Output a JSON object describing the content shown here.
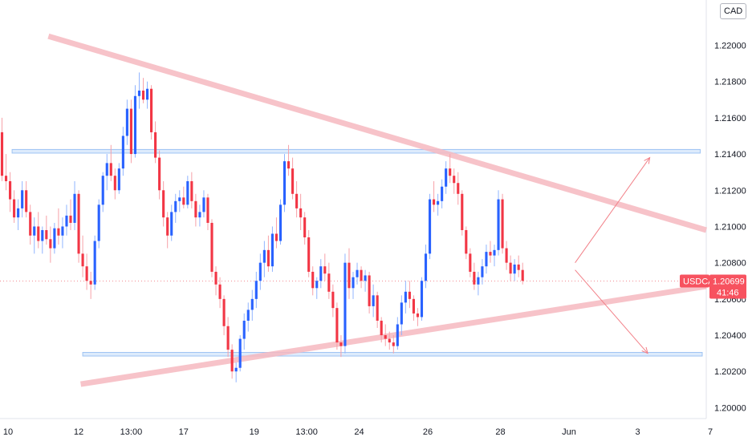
{
  "currency_badge": "CAD",
  "colors": {
    "up": "#2962ff",
    "down": "#f23645",
    "wick_up": "#90b4ff",
    "wick_down": "#f7a1a8",
    "tag_bg": "#f7525f",
    "zone_fill": "#cfe2fb",
    "zone_stroke": "#9ec3f3",
    "trend": "#f6b9bf",
    "arrow": "#f28088",
    "grid_dotted": "#f28b93"
  },
  "price_tag": {
    "symbol": "USDCAD",
    "price": "1.20699",
    "countdown": "41:46",
    "value": 1.20699
  },
  "chart_data": {
    "type": "candlestick",
    "title": "",
    "y_ticks": [
      "1.22000",
      "1.21800",
      "1.21600",
      "1.21400",
      "1.21200",
      "1.21000",
      "1.20800",
      "1.20600",
      "1.20400",
      "1.20200",
      "1.20000"
    ],
    "x_ticks": [
      "10",
      "12",
      "13:00",
      "17",
      "19",
      "13:00",
      "24",
      "26",
      "28",
      "Jun",
      "3",
      "7"
    ],
    "ylim": [
      1.1994,
      1.2225
    ],
    "x_range": [
      0,
      175
    ],
    "x_tick_positions": [
      2,
      19.5,
      32.5,
      45.5,
      63,
      76,
      89,
      106,
      124,
      141,
      158,
      176
    ],
    "candles": [
      [
        1.2152,
        1.216,
        1.2125,
        1.2128
      ],
      [
        1.2128,
        1.214,
        1.212,
        1.2125
      ],
      [
        1.2125,
        1.213,
        1.2108,
        1.2115
      ],
      [
        1.2115,
        1.212,
        1.2102,
        1.2105
      ],
      [
        1.2105,
        1.2115,
        1.2098,
        1.211
      ],
      [
        1.211,
        1.2125,
        1.2105,
        1.212
      ],
      [
        1.212,
        1.2125,
        1.2105,
        1.2108
      ],
      [
        1.2108,
        1.2112,
        1.209,
        1.2095
      ],
      [
        1.2095,
        1.2105,
        1.2085,
        1.21
      ],
      [
        1.21,
        1.2108,
        1.2088,
        1.2092
      ],
      [
        1.2092,
        1.21,
        1.2085,
        1.2098
      ],
      [
        1.2098,
        1.2106,
        1.209,
        1.2093
      ],
      [
        1.2093,
        1.21,
        1.208,
        1.2088
      ],
      [
        1.2088,
        1.2102,
        1.2085,
        1.2099
      ],
      [
        1.2099,
        1.211,
        1.209,
        1.2095
      ],
      [
        1.2095,
        1.2105,
        1.2088,
        1.21
      ],
      [
        1.21,
        1.2112,
        1.2095,
        1.2106
      ],
      [
        1.2106,
        1.2115,
        1.2098,
        1.2102
      ],
      [
        1.2102,
        1.2125,
        1.2098,
        1.2118
      ],
      [
        1.2118,
        1.212,
        1.208,
        1.2085
      ],
      [
        1.2085,
        1.2095,
        1.2072,
        1.2078
      ],
      [
        1.2078,
        1.2085,
        1.2065,
        1.207
      ],
      [
        1.207,
        1.2075,
        1.206,
        1.2068
      ],
      [
        1.2068,
        1.2095,
        1.2065,
        1.2092
      ],
      [
        1.2092,
        1.2115,
        1.2088,
        1.2112
      ],
      [
        1.2112,
        1.213,
        1.2108,
        1.2128
      ],
      [
        1.2128,
        1.214,
        1.212,
        1.2135
      ],
      [
        1.2135,
        1.2145,
        1.2125,
        1.2128
      ],
      [
        1.2128,
        1.2132,
        1.2115,
        1.212
      ],
      [
        1.212,
        1.2135,
        1.2118,
        1.2132
      ],
      [
        1.2132,
        1.2155,
        1.2128,
        1.215
      ],
      [
        1.215,
        1.217,
        1.2145,
        1.2165
      ],
      [
        1.2165,
        1.217,
        1.2135,
        1.214
      ],
      [
        1.214,
        1.2178,
        1.2138,
        1.2172
      ],
      [
        1.2172,
        1.2185,
        1.2165,
        1.2175
      ],
      [
        1.2175,
        1.2182,
        1.2168,
        1.217
      ],
      [
        1.217,
        1.218,
        1.2165,
        1.2176
      ],
      [
        1.2176,
        1.2178,
        1.2148,
        1.2152
      ],
      [
        1.2152,
        1.2158,
        1.2135,
        1.2138
      ],
      [
        1.2138,
        1.2142,
        1.2115,
        1.212
      ],
      [
        1.212,
        1.2125,
        1.21,
        1.2105
      ],
      [
        1.2105,
        1.2108,
        1.2088,
        1.2095
      ],
      [
        1.2095,
        1.2112,
        1.2092,
        1.2108
      ],
      [
        1.2108,
        1.2118,
        1.2102,
        1.2114
      ],
      [
        1.2114,
        1.212,
        1.2108,
        1.2116
      ],
      [
        1.2116,
        1.2122,
        1.211,
        1.2112
      ],
      [
        1.2112,
        1.2128,
        1.211,
        1.2125
      ],
      [
        1.2125,
        1.213,
        1.211,
        1.2114
      ],
      [
        1.2114,
        1.2118,
        1.21,
        1.2105
      ],
      [
        1.2105,
        1.2112,
        1.21,
        1.2108
      ],
      [
        1.2108,
        1.212,
        1.2105,
        1.2116
      ],
      [
        1.2116,
        1.2118,
        1.2098,
        1.2102
      ],
      [
        1.2102,
        1.2104,
        1.2072,
        1.2075
      ],
      [
        1.2075,
        1.2078,
        1.2062,
        1.2068
      ],
      [
        1.2068,
        1.2072,
        1.2055,
        1.206
      ],
      [
        1.206,
        1.2062,
        1.204,
        1.2045
      ],
      [
        1.2045,
        1.205,
        1.2028,
        1.2032
      ],
      [
        1.2032,
        1.2035,
        1.2016,
        1.202
      ],
      [
        1.202,
        1.2025,
        1.2014,
        1.2022
      ],
      [
        1.2022,
        1.204,
        1.202,
        1.2038
      ],
      [
        1.2038,
        1.2052,
        1.2032,
        1.2048
      ],
      [
        1.2048,
        1.2058,
        1.2042,
        1.2054
      ],
      [
        1.2054,
        1.2065,
        1.2048,
        1.206
      ],
      [
        1.206,
        1.2075,
        1.2055,
        1.207
      ],
      [
        1.207,
        1.2085,
        1.2065,
        1.208
      ],
      [
        1.208,
        1.2092,
        1.2072,
        1.2087
      ],
      [
        1.2087,
        1.2095,
        1.2075,
        1.2078
      ],
      [
        1.2078,
        1.21,
        1.2075,
        1.2096
      ],
      [
        1.2096,
        1.2105,
        1.2088,
        1.2092
      ],
      [
        1.2092,
        1.2115,
        1.209,
        1.2112
      ],
      [
        1.2112,
        1.214,
        1.2108,
        1.2136
      ],
      [
        1.2136,
        1.2145,
        1.2128,
        1.2132
      ],
      [
        1.2132,
        1.2138,
        1.2115,
        1.2118
      ],
      [
        1.2118,
        1.2125,
        1.2105,
        1.211
      ],
      [
        1.211,
        1.2118,
        1.2098,
        1.2105
      ],
      [
        1.2105,
        1.2108,
        1.209,
        1.2094
      ],
      [
        1.2094,
        1.2098,
        1.2072,
        1.2075
      ],
      [
        1.2075,
        1.2078,
        1.2062,
        1.2066
      ],
      [
        1.2066,
        1.2072,
        1.206,
        1.207
      ],
      [
        1.207,
        1.2082,
        1.2066,
        1.2078
      ],
      [
        1.2078,
        1.2085,
        1.207,
        1.2074
      ],
      [
        1.2074,
        1.208,
        1.206,
        1.2064
      ],
      [
        1.2064,
        1.2068,
        1.205,
        1.2055
      ],
      [
        1.2055,
        1.2058,
        1.2032,
        1.2036
      ],
      [
        1.2036,
        1.204,
        1.2028,
        1.2034
      ],
      [
        1.2034,
        1.2085,
        1.203,
        1.208
      ],
      [
        1.208,
        1.2088,
        1.206,
        1.2066
      ],
      [
        1.2066,
        1.2075,
        1.206,
        1.2072
      ],
      [
        1.2072,
        1.208,
        1.2068,
        1.2076
      ],
      [
        1.2076,
        1.2078,
        1.2066,
        1.207
      ],
      [
        1.207,
        1.2076,
        1.2064,
        1.2073
      ],
      [
        1.2073,
        1.2075,
        1.2052,
        1.2056
      ],
      [
        1.2056,
        1.2068,
        1.205,
        1.2062
      ],
      [
        1.2062,
        1.2064,
        1.2044,
        1.2048
      ],
      [
        1.2048,
        1.205,
        1.2036,
        1.204
      ],
      [
        1.204,
        1.2046,
        1.2034,
        1.2038
      ],
      [
        1.2038,
        1.2042,
        1.2032,
        1.2036
      ],
      [
        1.2036,
        1.204,
        1.203,
        1.2034
      ],
      [
        1.2034,
        1.205,
        1.2032,
        1.2046
      ],
      [
        1.2046,
        1.2062,
        1.204,
        1.2058
      ],
      [
        1.2058,
        1.207,
        1.2052,
        1.2064
      ],
      [
        1.2064,
        1.207,
        1.2055,
        1.206
      ],
      [
        1.206,
        1.2062,
        1.2048,
        1.2052
      ],
      [
        1.2052,
        1.2055,
        1.2045,
        1.205
      ],
      [
        1.205,
        1.2072,
        1.2048,
        1.207
      ],
      [
        1.207,
        1.209,
        1.2066,
        1.2085
      ],
      [
        1.2085,
        1.2118,
        1.2082,
        1.2115
      ],
      [
        1.2115,
        1.2125,
        1.2108,
        1.2112
      ],
      [
        1.2112,
        1.2118,
        1.2106,
        1.2114
      ],
      [
        1.2114,
        1.2126,
        1.211,
        1.2122
      ],
      [
        1.2122,
        1.2136,
        1.2118,
        1.2132
      ],
      [
        1.2132,
        1.214,
        1.2124,
        1.2128
      ],
      [
        1.2128,
        1.2132,
        1.2118,
        1.2124
      ],
      [
        1.2124,
        1.213,
        1.2112,
        1.2118
      ],
      [
        1.2118,
        1.212,
        1.2095,
        1.2098
      ],
      [
        1.2098,
        1.21,
        1.2082,
        1.2085
      ],
      [
        1.2085,
        1.2088,
        1.2072,
        1.2075
      ],
      [
        1.2075,
        1.208,
        1.2065,
        1.2068
      ],
      [
        1.2068,
        1.2075,
        1.2062,
        1.2072
      ],
      [
        1.2072,
        1.2082,
        1.2068,
        1.2078
      ],
      [
        1.2078,
        1.209,
        1.2074,
        1.2086
      ],
      [
        1.2086,
        1.2092,
        1.208,
        1.2084
      ],
      [
        1.2084,
        1.209,
        1.2078,
        1.2087
      ],
      [
        1.2087,
        1.212,
        1.2084,
        1.2115
      ],
      [
        1.2115,
        1.2118,
        1.2085,
        1.2088
      ],
      [
        1.2088,
        1.2092,
        1.2076,
        1.208
      ],
      [
        1.208,
        1.2084,
        1.207,
        1.2074
      ],
      [
        1.2074,
        1.2082,
        1.207,
        1.2079
      ],
      [
        1.2079,
        1.2084,
        1.2072,
        1.2076
      ],
      [
        1.2076,
        1.208,
        1.2068,
        1.207
      ]
    ],
    "zones": [
      {
        "x1": 3,
        "x2": 173.5,
        "y1": 1.21425,
        "y2": 1.21405
      },
      {
        "x1": 20.5,
        "x2": 174,
        "y1": 1.20305,
        "y2": 1.20285
      }
    ],
    "trendlines": [
      {
        "x1": 12,
        "y1": 1.2205,
        "x2": 175,
        "y2": 1.2098
      },
      {
        "x1": 20,
        "y1": 1.2013,
        "x2": 175,
        "y2": 1.2067
      }
    ],
    "arrows": [
      {
        "x1": 142.5,
        "y1": 1.208,
        "x2": 161,
        "y2": 1.2138
      },
      {
        "x1": 142.5,
        "y1": 1.2076,
        "x2": 160.5,
        "y2": 1.203
      }
    ]
  }
}
